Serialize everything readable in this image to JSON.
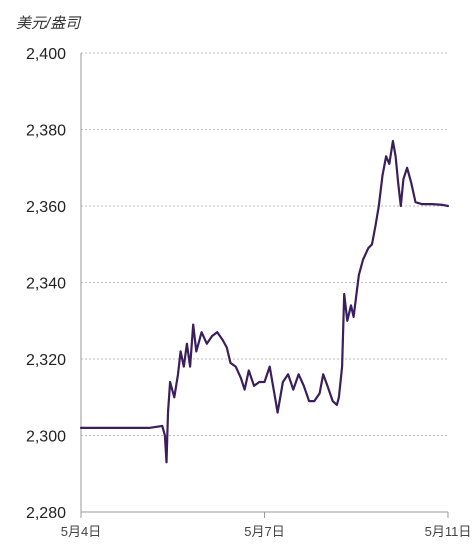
{
  "chart_data": {
    "type": "line",
    "unit_label": "美元/盎司",
    "ylim": [
      2280,
      2400
    ],
    "y_ticks": [
      "2,280",
      "2,300",
      "2,320",
      "2,340",
      "2,360",
      "2,380",
      "2,400"
    ],
    "y_tick_values": [
      2280,
      2300,
      2320,
      2340,
      2360,
      2380,
      2400
    ],
    "x_range": [
      0,
      7.1
    ],
    "x_ticks": [
      {
        "label": "5月4日",
        "t": 0
      },
      {
        "label": "5月7日",
        "t": 3.5
      },
      {
        "label": "5月11日",
        "t": 7.0
      }
    ],
    "grid": "horizontal-dotted",
    "line_color": "#3a1f5c",
    "series": [
      {
        "values": [
          [
            0.0,
            2302
          ],
          [
            0.5,
            2302
          ],
          [
            1.0,
            2302
          ],
          [
            1.3,
            2302
          ],
          [
            1.55,
            2302.5
          ],
          [
            1.6,
            2300
          ],
          [
            1.63,
            2293
          ],
          [
            1.66,
            2306
          ],
          [
            1.7,
            2314
          ],
          [
            1.78,
            2310
          ],
          [
            1.85,
            2316
          ],
          [
            1.9,
            2322
          ],
          [
            1.96,
            2318
          ],
          [
            2.02,
            2324
          ],
          [
            2.08,
            2318
          ],
          [
            2.14,
            2329
          ],
          [
            2.2,
            2322
          ],
          [
            2.3,
            2327
          ],
          [
            2.4,
            2324
          ],
          [
            2.5,
            2326
          ],
          [
            2.6,
            2327
          ],
          [
            2.7,
            2325
          ],
          [
            2.78,
            2323
          ],
          [
            2.85,
            2319
          ],
          [
            2.95,
            2318
          ],
          [
            3.05,
            2315
          ],
          [
            3.12,
            2312
          ],
          [
            3.2,
            2317
          ],
          [
            3.3,
            2313
          ],
          [
            3.4,
            2314
          ],
          [
            3.5,
            2314
          ],
          [
            3.6,
            2318
          ],
          [
            3.7,
            2310
          ],
          [
            3.75,
            2306
          ],
          [
            3.85,
            2314
          ],
          [
            3.95,
            2316
          ],
          [
            4.05,
            2312
          ],
          [
            4.15,
            2316
          ],
          [
            4.25,
            2313
          ],
          [
            4.35,
            2309
          ],
          [
            4.45,
            2309
          ],
          [
            4.55,
            2311
          ],
          [
            4.62,
            2316
          ],
          [
            4.7,
            2313
          ],
          [
            4.8,
            2309
          ],
          [
            4.88,
            2308
          ],
          [
            4.92,
            2310
          ],
          [
            4.98,
            2318
          ],
          [
            5.02,
            2337
          ],
          [
            5.08,
            2330
          ],
          [
            5.15,
            2334
          ],
          [
            5.2,
            2331
          ],
          [
            5.3,
            2342
          ],
          [
            5.38,
            2346
          ],
          [
            5.48,
            2349
          ],
          [
            5.55,
            2350
          ],
          [
            5.62,
            2355
          ],
          [
            5.68,
            2360
          ],
          [
            5.75,
            2368
          ],
          [
            5.82,
            2373
          ],
          [
            5.88,
            2371
          ],
          [
            5.95,
            2377
          ],
          [
            6.0,
            2373
          ],
          [
            6.05,
            2366
          ],
          [
            6.1,
            2360
          ],
          [
            6.15,
            2367
          ],
          [
            6.22,
            2370
          ],
          [
            6.3,
            2366
          ],
          [
            6.38,
            2361
          ],
          [
            6.5,
            2360.5
          ],
          [
            6.7,
            2360.5
          ],
          [
            6.9,
            2360.3
          ],
          [
            7.0,
            2360
          ]
        ]
      }
    ]
  }
}
